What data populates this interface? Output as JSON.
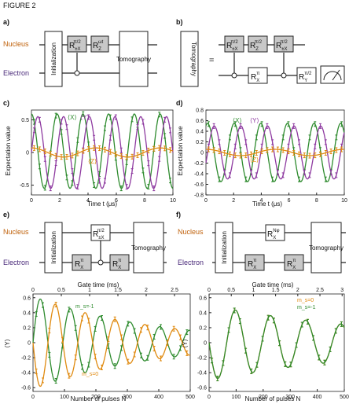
{
  "figure_title": "FIGURE 2",
  "colors": {
    "nucleus": "#c0620c",
    "electron": "#4a2a7a",
    "green": "#2e8b2e",
    "purple": "#8e3aa0",
    "orange": "#e08a10",
    "gray_box": "#c8c8c8"
  },
  "panels": {
    "a": {
      "label": "a)",
      "nucleus": "Nucleus",
      "electron": "Electron",
      "init": "Initialization",
      "tomo": "Tomography",
      "gate1": {
        "base": "R",
        "sub": "±X",
        "sup": "π/2"
      },
      "gate2": {
        "base": "R",
        "sub": "Z",
        "sup": "ωt"
      }
    },
    "b": {
      "label": "b)",
      "tomo": "Tomography",
      "equals": "=",
      "g1": {
        "base": "R",
        "sub": "±X",
        "sup": "π/2"
      },
      "g2": {
        "base": "R",
        "sub": "Z",
        "sup": "π/2"
      },
      "g3": {
        "base": "R",
        "sub": "±X",
        "sup": "π/2"
      },
      "e1": {
        "base": "R",
        "sub": "X",
        "sup": "π"
      },
      "e2": {
        "base": "R",
        "sub": "X",
        "sup": "π"
      },
      "e3": {
        "base": "R",
        "sub": "Y",
        "sup": "π/2"
      }
    },
    "c": {
      "label": "c)",
      "ylabel": "Expectation value",
      "xlabel": "Time t (μs)",
      "X": "⟨X⟩",
      "Y": "⟨Y⟩",
      "Z": "⟨Z⟩"
    },
    "d": {
      "label": "d)",
      "ylabel": "Expectation value",
      "xlabel": "Time t (μs)",
      "X": "⟨X⟩",
      "Y": "⟨Y⟩",
      "Z": "⟨Z⟩"
    },
    "e": {
      "label": "e)",
      "nucleus": "Nucleus",
      "electron": "Electron",
      "init": "Initialization",
      "tomo": "Tomography",
      "ng": {
        "base": "R",
        "sub": "±X",
        "sup": "π/2"
      },
      "e1": {
        "base": "R",
        "sub": "X",
        "sup": "π"
      },
      "e2": {
        "base": "R",
        "sub": "X",
        "sup": "π"
      }
    },
    "f": {
      "label": "f)",
      "nucleus": "Nucleus",
      "electron": "Electron",
      "init": "Initialization",
      "tomo": "Tomography",
      "ng": {
        "base": "R",
        "sub": "X",
        "sup": "Nφ"
      },
      "e1": {
        "base": "R",
        "sub": "X",
        "sup": "π"
      },
      "e2": {
        "base": "R",
        "sub": "X",
        "sup": "π"
      }
    },
    "g": {
      "top_label": "Gate time (ms)",
      "xlabel": "Number of pulses N",
      "ylabel": "⟨Y⟩",
      "ms1": "m_s=-1",
      "ms0": "m_s=0"
    },
    "h": {
      "top_label": "Gate time (ms)",
      "xlabel": "Number of pulses N",
      "ylabel": "⟨Y⟩",
      "ms0": "m_s=0",
      "ms1": "m_s=-1"
    }
  },
  "chart_data": [
    {
      "id": "c",
      "type": "line",
      "xlabel": "Time t (μs)",
      "ylabel": "Expectation value",
      "xlim": [
        0,
        10
      ],
      "ylim": [
        -0.65,
        0.65
      ],
      "xticks": [
        0,
        2,
        4,
        6,
        8,
        10
      ],
      "yticks": [
        -0.5,
        0,
        0.5
      ],
      "series": [
        {
          "name": "⟨X⟩",
          "color": "green",
          "amp": 0.57,
          "freq": 0.55,
          "phase": 0.0,
          "offset": 0.02
        },
        {
          "name": "⟨Y⟩",
          "color": "purple",
          "amp": 0.55,
          "freq": 0.55,
          "phase": -1.57,
          "offset": 0.0
        },
        {
          "name": "⟨Z⟩",
          "color": "orange",
          "amp": 0.07,
          "freq": 0.22,
          "phase": 0.0,
          "offset": 0.0
        }
      ]
    },
    {
      "id": "d",
      "type": "line",
      "xlabel": "Time t (μs)",
      "ylabel": "Expectation value",
      "xlim": [
        0,
        10
      ],
      "ylim": [
        -0.8,
        0.8
      ],
      "xticks": [
        0,
        2,
        4,
        6,
        8,
        10
      ],
      "yticks": [
        -0.8,
        -0.6,
        -0.4,
        -0.2,
        0,
        0.2,
        0.4,
        0.6,
        0.8
      ],
      "series": [
        {
          "name": "⟨X⟩",
          "color": "green",
          "amp": 0.55,
          "freq": 0.52,
          "phase": -0.4,
          "offset": 0.0
        },
        {
          "name": "⟨Y⟩",
          "color": "purple",
          "amp": 0.5,
          "freq": 0.52,
          "phase": -1.97,
          "offset": 0.0
        },
        {
          "name": "⟨Z⟩",
          "color": "orange",
          "amp": 0.06,
          "freq": 0.2,
          "phase": 0.0,
          "offset": 0.0
        }
      ]
    },
    {
      "id": "g",
      "type": "line",
      "xlabel": "Number of pulses N",
      "ylabel": "⟨Y⟩",
      "xlim": [
        0,
        500
      ],
      "ylim": [
        -0.65,
        0.65
      ],
      "xticks": [
        0,
        100,
        200,
        300,
        400,
        500
      ],
      "yticks": [
        -0.6,
        -0.4,
        -0.2,
        0,
        0.2,
        0.4,
        0.6
      ],
      "top_ticks": [
        "0",
        "0.5",
        "1",
        "1.5",
        "2",
        "2.5"
      ],
      "series": [
        {
          "name": "m_s=-1",
          "color": "green",
          "amp": 0.62,
          "period": 95,
          "sign": 1,
          "decay": 380
        },
        {
          "name": "m_s=0",
          "color": "orange",
          "amp": 0.62,
          "period": 95,
          "sign": -1,
          "decay": 380
        }
      ]
    },
    {
      "id": "h",
      "type": "line",
      "xlabel": "Number of pulses N",
      "ylabel": "⟨Y⟩",
      "xlim": [
        0,
        500
      ],
      "ylim": [
        -0.65,
        0.65
      ],
      "xticks": [
        0,
        100,
        200,
        300,
        400,
        500
      ],
      "yticks": [
        -0.6,
        -0.4,
        -0.2,
        0,
        0.2,
        0.4,
        0.6
      ],
      "top_ticks": [
        "0",
        "0.5",
        "1",
        "1.5",
        "2",
        "2.5",
        "3"
      ],
      "series": [
        {
          "name": "m_s=0",
          "color": "orange",
          "amp": 0.5,
          "period": 130,
          "sign": -1,
          "decay": 700
        },
        {
          "name": "m_s=-1",
          "color": "green",
          "amp": 0.5,
          "period": 130,
          "sign": -1,
          "decay": 700
        }
      ]
    }
  ]
}
